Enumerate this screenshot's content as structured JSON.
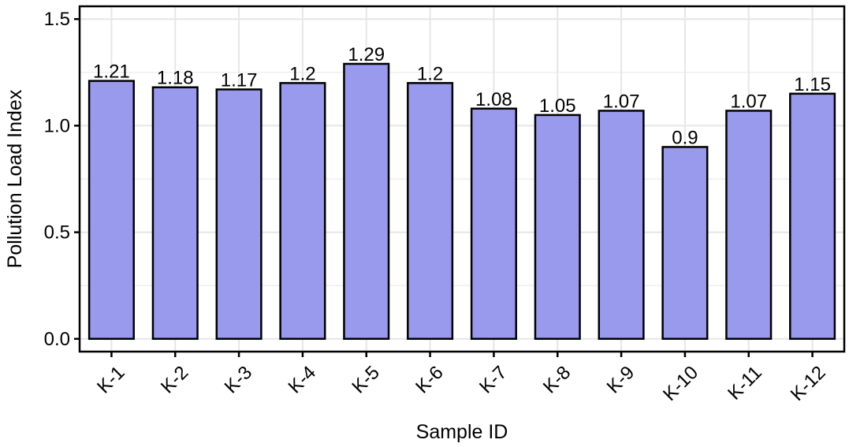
{
  "chart_data": {
    "type": "bar",
    "title": "",
    "xlabel": "Sample ID",
    "ylabel": "Pollution Load Index",
    "categories": [
      "K-1",
      "K-2",
      "K-3",
      "K-4",
      "K-5",
      "K-6",
      "K-7",
      "K-8",
      "K-9",
      "K-10",
      "K-11",
      "K-12"
    ],
    "values": [
      1.21,
      1.18,
      1.17,
      1.2,
      1.29,
      1.2,
      1.08,
      1.05,
      1.07,
      0.9,
      1.07,
      1.15
    ],
    "value_labels": [
      "1.21",
      "1.18",
      "1.17",
      "1.2",
      "1.29",
      "1.2",
      "1.08",
      "1.05",
      "1.07",
      "0.9",
      "1.07",
      "1.15"
    ],
    "ylim": [
      -0.06,
      1.56
    ],
    "y_ticks": [
      0.0,
      0.5,
      1.0,
      1.5
    ],
    "y_tick_labels": [
      "0.0",
      "0.5",
      "1.0",
      "1.5"
    ],
    "grid": true,
    "legend": "none",
    "bar_color": "#9999ee",
    "bar_edge_color": "#000000",
    "grid_color": "#e6e6e6"
  }
}
